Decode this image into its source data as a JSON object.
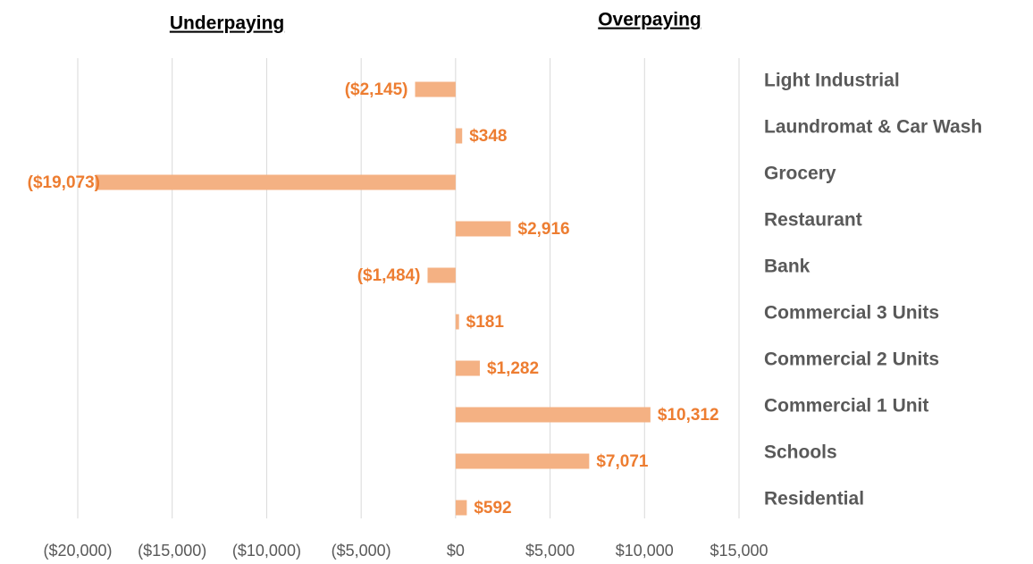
{
  "chart_data": {
    "type": "barh",
    "annotations": [
      "Underpaying",
      "Overpaying"
    ],
    "categories": [
      "Light Industrial",
      "Laundromat & Car Wash",
      "Grocery",
      "Restaurant",
      "Bank",
      "Commercial 3 Units",
      "Commercial 2 Units",
      "Commercial 1 Unit",
      "Schools",
      "Residential"
    ],
    "values": [
      -2145,
      348,
      -19073,
      2916,
      -1484,
      181,
      1282,
      10312,
      7071,
      592
    ],
    "value_labels": [
      "($2,145)",
      "$348",
      "($19,073)",
      "$2,916",
      "($1,484)",
      "$181",
      "$1,282",
      "$10,312",
      "$7,071",
      "$592"
    ],
    "color": "#f4b183",
    "label_color": "#ed7d31",
    "xlim": [
      -20000,
      15000
    ],
    "xticks": [
      {
        "value": -20000,
        "label": "($20,000)"
      },
      {
        "value": -15000,
        "label": "($15,000)"
      },
      {
        "value": -10000,
        "label": "($10,000)"
      },
      {
        "value": -5000,
        "label": "($5,000)"
      },
      {
        "value": 0,
        "label": "$0"
      },
      {
        "value": 5000,
        "label": "$5,000"
      },
      {
        "value": 10000,
        "label": "$10,000"
      },
      {
        "value": 15000,
        "label": "$15,000"
      }
    ],
    "grid": true
  }
}
